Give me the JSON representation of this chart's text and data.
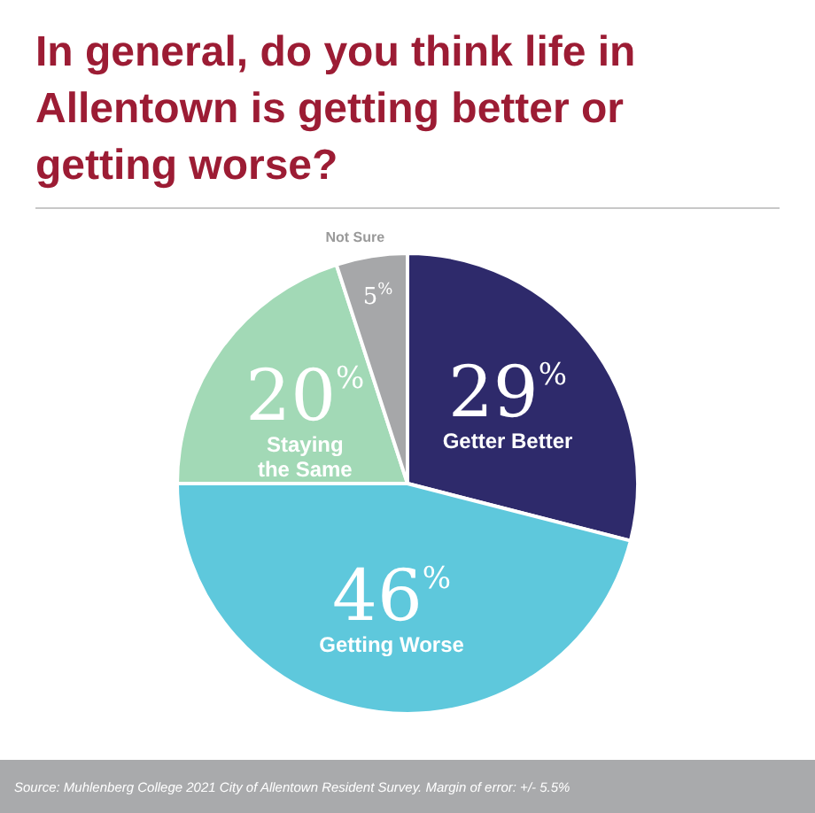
{
  "chart_data": {
    "type": "pie",
    "title": "In general, do you think life in Allentown is getting better or getting worse?",
    "categories": [
      "Getter Better",
      "Getting Worse",
      "Staying the Same",
      "Not Sure"
    ],
    "values": [
      29,
      46,
      20,
      5
    ],
    "value_labels": [
      "29%",
      "46%",
      "20%",
      "5%"
    ],
    "colors": [
      "#2e2a6b",
      "#5ec8dc",
      "#a2d9b6",
      "#a6a7a9"
    ],
    "legend": false,
    "annotations": [
      "Source: Muhlenberg College 2021 City of Allentown Resident Survey. Margin of error: +/- 5.5%"
    ]
  }
}
